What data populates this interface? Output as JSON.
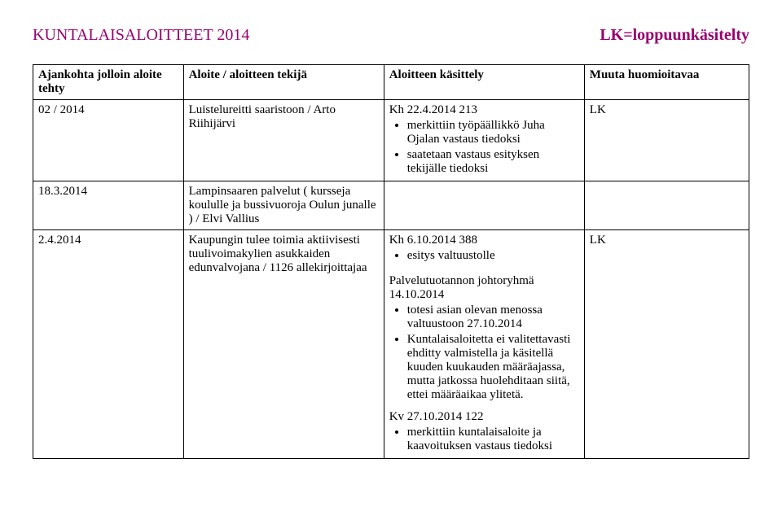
{
  "header": {
    "left": "KUNTALAISALOITTEET 2014",
    "right": "LK=loppuunkäsitelty"
  },
  "colors": {
    "header_text": "#980071",
    "body_text": "#000000",
    "border": "#000000",
    "background": "#ffffff"
  },
  "table": {
    "columns": [
      "Ajankohta jolloin aloite tehty",
      "Aloite / aloitteen tekijä",
      "Aloitteen käsittely",
      "Muuta huomioitavaa"
    ],
    "rows": [
      {
        "date": "02 / 2014",
        "author": "Luistelureitti saaristoon / Arto Riihijärvi",
        "handling_title": "Kh 22.4.2014 213",
        "handling_bullets": [
          "merkittiin työpäällikkö Juha Ojalan vastaus tiedoksi",
          "saatetaan vastaus esityksen tekijälle tiedoksi"
        ],
        "note": "LK"
      },
      {
        "date": "18.3.2014",
        "author": "Lampinsaaren palvelut ( kursseja koululle ja bussivuoroja Oulun junalle ) / Elvi Vallius",
        "handling_title": "",
        "handling_bullets": [],
        "note": ""
      },
      {
        "date": "2.4.2014",
        "author": "Kaupungin tulee toimia aktiivisesti tuulivoimakylien asukkaiden edunvalvojana / 1126 allekirjoittajaa",
        "handling_block1_title": "Kh 6.10.2014 388",
        "handling_block1_bullets": [
          "esitys valtuustolle"
        ],
        "handling_block2_title": "Palvelutuotannon johtoryhmä 14.10.2014",
        "handling_block2_bullets": [
          "totesi asian olevan menossa valtuustoon 27.10.2014",
          "Kuntalaisaloitetta ei valitettavasti ehditty valmistella ja käsitellä kuuden kuukauden määräajassa, mutta jatkossa huolehditaan siitä, ettei määräaikaa ylitetä."
        ],
        "handling_block3_title": "Kv 27.10.2014 122",
        "handling_block3_bullets": [
          "merkittiin kuntalaisaloite ja kaavoituksen vastaus tiedoksi"
        ],
        "note": "LK"
      }
    ]
  }
}
